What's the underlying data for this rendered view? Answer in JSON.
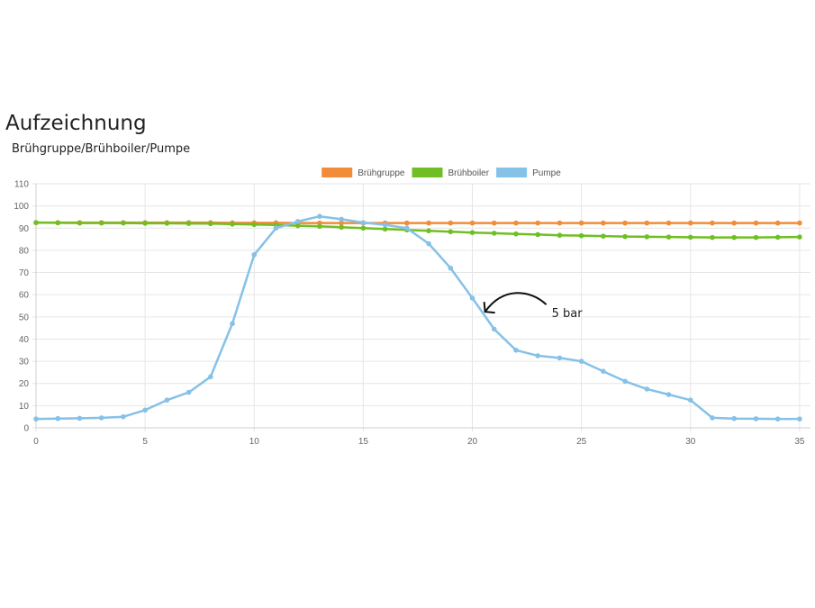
{
  "page": {
    "title": "Aufzeichnung",
    "subtitle": "Brühgruppe/Brühboiler/Pumpe"
  },
  "chart_data": {
    "type": "line",
    "x": [
      0,
      1,
      2,
      3,
      4,
      5,
      6,
      7,
      8,
      9,
      10,
      11,
      12,
      13,
      14,
      15,
      16,
      17,
      18,
      19,
      20,
      21,
      22,
      23,
      24,
      25,
      26,
      27,
      28,
      29,
      30,
      31,
      32,
      33,
      34,
      35
    ],
    "xlim": [
      0,
      35.5
    ],
    "ylim": [
      0,
      110
    ],
    "xticks": [
      0,
      5,
      10,
      15,
      20,
      25,
      30,
      35
    ],
    "yticks": [
      0,
      10,
      20,
      30,
      40,
      50,
      60,
      70,
      80,
      90,
      100,
      110
    ],
    "grid": true,
    "legend_position": "top-center",
    "series": [
      {
        "name": "Brühgruppe",
        "color": "#f28c38",
        "values": [
          92.5,
          92.5,
          92.5,
          92.5,
          92.5,
          92.5,
          92.5,
          92.5,
          92.5,
          92.4,
          92.4,
          92.4,
          92.3,
          92.3,
          92.3,
          92.3,
          92.3,
          92.3,
          92.3,
          92.3,
          92.3,
          92.3,
          92.3,
          92.3,
          92.3,
          92.3,
          92.3,
          92.3,
          92.3,
          92.3,
          92.3,
          92.3,
          92.3,
          92.3,
          92.3,
          92.3
        ]
      },
      {
        "name": "Brühboiler",
        "color": "#6fbf24",
        "values": [
          92.5,
          92.4,
          92.3,
          92.3,
          92.3,
          92.2,
          92.2,
          92.1,
          92.0,
          91.8,
          91.6,
          91.4,
          91.1,
          90.8,
          90.4,
          90.0,
          89.6,
          89.2,
          88.8,
          88.4,
          88.0,
          87.7,
          87.4,
          87.1,
          86.8,
          86.6,
          86.4,
          86.2,
          86.1,
          86.0,
          85.9,
          85.8,
          85.8,
          85.8,
          85.9,
          86.0
        ]
      },
      {
        "name": "Pumpe",
        "color": "#86c1e8",
        "values": [
          4.0,
          4.2,
          4.3,
          4.5,
          5.0,
          8.0,
          12.5,
          16.0,
          23.0,
          47.0,
          78.0,
          90.0,
          93.0,
          95.3,
          94.0,
          92.5,
          91.5,
          90.0,
          83.0,
          72.0,
          58.5,
          44.5,
          35.0,
          32.5,
          31.5,
          30.0,
          25.5,
          21.0,
          17.5,
          15.0,
          12.5,
          4.5,
          4.2,
          4.1,
          4.0,
          4.0
        ]
      }
    ],
    "annotation": {
      "text": "5 bar",
      "points_to_x": 20.5
    }
  }
}
